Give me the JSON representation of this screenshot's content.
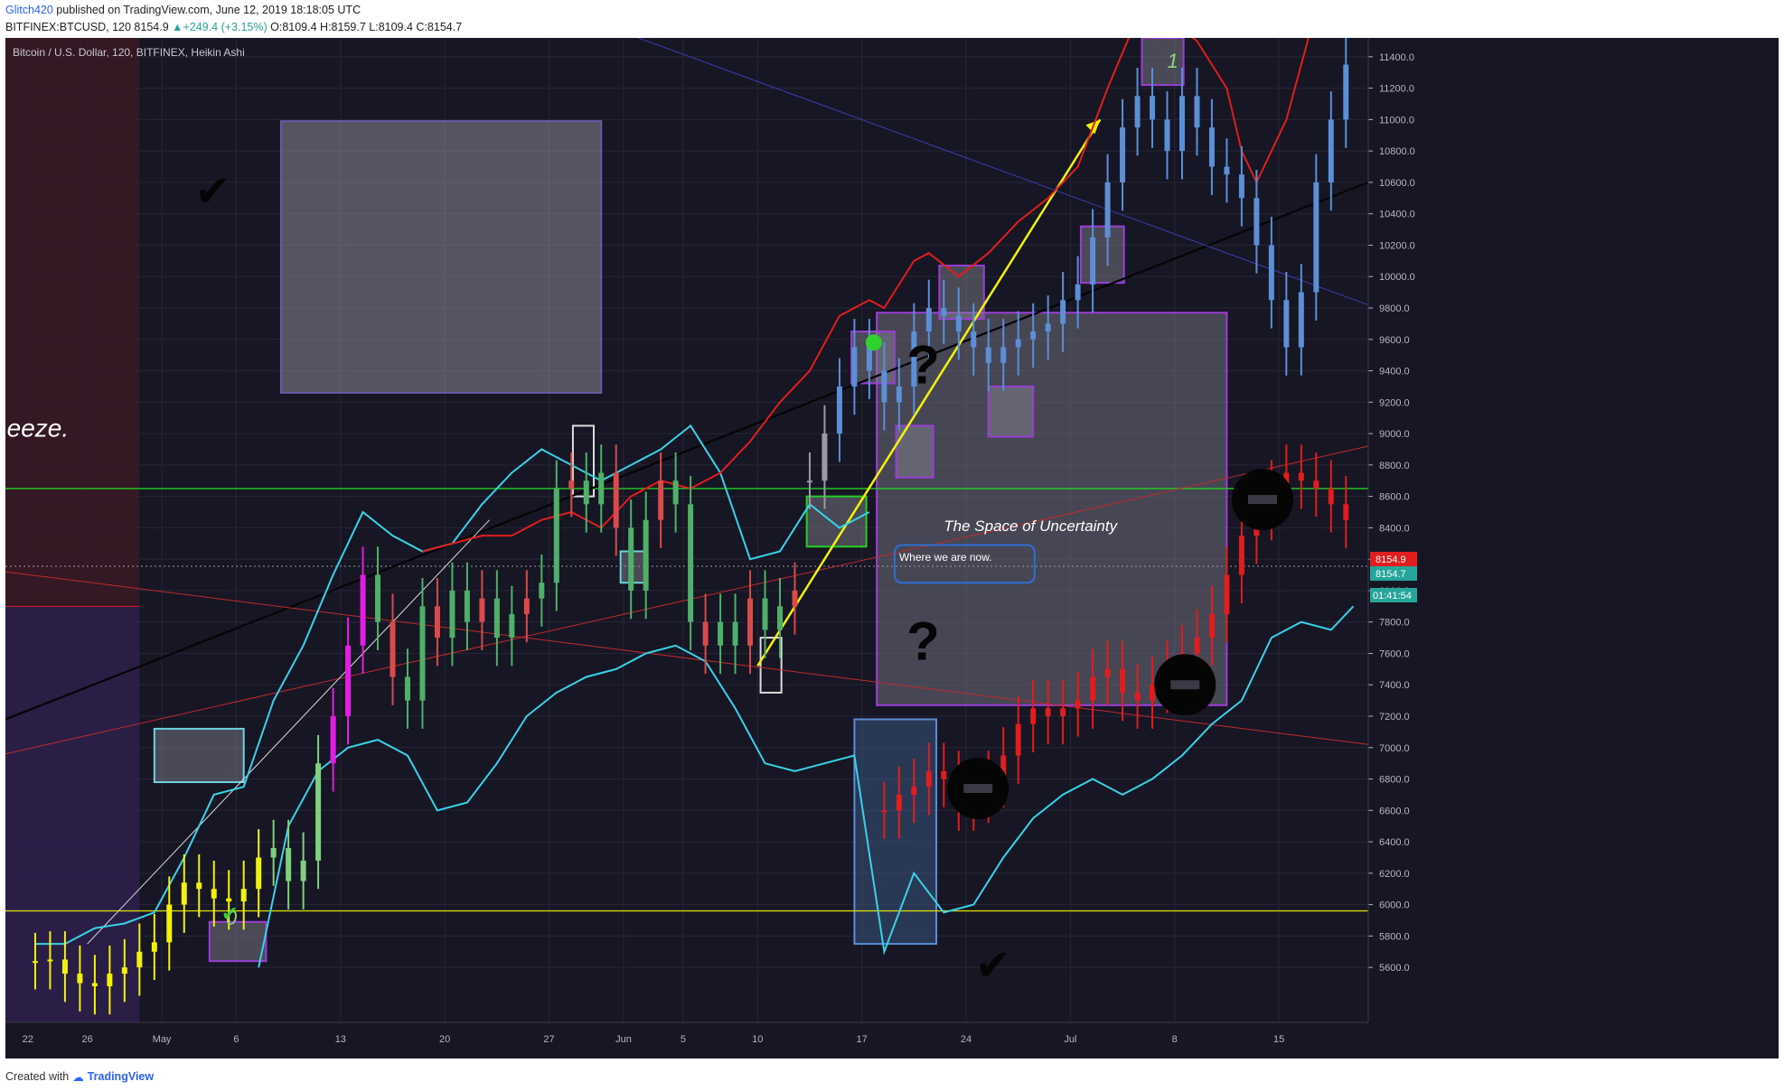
{
  "header": {
    "author": "Glitch420",
    "published_text": "published on TradingView.com, June 12, 2019 18:18:05 UTC",
    "symbol_line": "BITFINEX:BTCUSD, 120",
    "last": "8154.9",
    "change": "+249.4 (+3.15%)",
    "o_label": "O:",
    "o": "8109.4",
    "h_label": "H:",
    "h": "8159.7",
    "l_label": "L:",
    "l": "8109.4",
    "c_label": "C:",
    "c": "8154.7"
  },
  "footer": {
    "created_with": "Created with",
    "brand": "TradingView"
  },
  "colors": {
    "background": "#161624",
    "grid": "#262638",
    "cyan": "#39d3e8",
    "red": "#e21d1d",
    "blue_candle": "#5b8fd6",
    "yellow": "#f2f20a",
    "magenta": "#e41de4",
    "green_line": "#22d022",
    "purple": "#8a39c9",
    "black_line": "#050505",
    "axis_text": "#b7b7c2"
  },
  "chart_data": {
    "type": "candlestick",
    "title": "Bitcoin / U.S. Dollar, 120, BITFINEX, Heikin Ashi",
    "ylim": [
      5250,
      11520
    ],
    "y_ticks": [
      5600,
      5800,
      6000,
      6200,
      6400,
      6600,
      6800,
      7000,
      7200,
      7400,
      7600,
      7800,
      8000,
      8200,
      8400,
      8600,
      8800,
      9000,
      9200,
      9400,
      9600,
      9800,
      10000,
      10200,
      10400,
      10600,
      10800,
      11000,
      11200,
      11400
    ],
    "x_ticks": [
      {
        "label": "22",
        "day": -9
      },
      {
        "label": "26",
        "day": -5
      },
      {
        "label": "May",
        "day": 0
      },
      {
        "label": "6",
        "day": 5
      },
      {
        "label": "13",
        "day": 12
      },
      {
        "label": "20",
        "day": 19
      },
      {
        "label": "27",
        "day": 26
      },
      {
        "label": "Jun",
        "day": 31
      },
      {
        "label": "5",
        "day": 35
      },
      {
        "label": "10",
        "day": 40
      },
      {
        "label": "17",
        "day": 47
      },
      {
        "label": "24",
        "day": 54
      },
      {
        "label": "Jul",
        "day": 61
      },
      {
        "label": "8",
        "day": 68
      },
      {
        "label": "15",
        "day": 75
      }
    ],
    "xlim_days": [
      -10.5,
      81
    ],
    "price_labels": [
      {
        "value": 8154.9,
        "text": "8154.9",
        "color": "#e21d1d"
      },
      {
        "value": 8154.7,
        "text": "8154.7",
        "color": "#26a69a"
      }
    ],
    "countdown": "01:41:54",
    "horizontal_lines": [
      {
        "price": 8650,
        "color": "#22d022",
        "style": "solid"
      },
      {
        "price": 5960,
        "color": "#d6d60a",
        "style": "solid"
      },
      {
        "price": 8154.9,
        "color": "#9a9aaa",
        "style": "dotted"
      }
    ],
    "series": [
      {
        "name": "",
        "style": "heikin-ashi candles",
        "points": [
          [
            -8.5,
            5640
          ],
          [
            -7.5,
            5650
          ],
          [
            -6.5,
            5560
          ],
          [
            -5.5,
            5500
          ],
          [
            -4.5,
            5480
          ],
          [
            -3.5,
            5560
          ],
          [
            -2.5,
            5600
          ],
          [
            -1.5,
            5700
          ],
          [
            -0.5,
            5760
          ],
          [
            0.5,
            6000
          ],
          [
            1.5,
            6140
          ],
          [
            2.5,
            6100
          ],
          [
            3.5,
            6040
          ],
          [
            4.5,
            6020
          ],
          [
            5.5,
            6100
          ],
          [
            6.5,
            6300
          ],
          [
            7.5,
            6360
          ],
          [
            8.5,
            6150
          ],
          [
            9.5,
            6280
          ],
          [
            10.5,
            6900
          ],
          [
            11.5,
            7200
          ],
          [
            12.5,
            7650
          ],
          [
            13.5,
            8100
          ],
          [
            14.5,
            7800
          ],
          [
            15.5,
            7450
          ],
          [
            16.5,
            7300
          ],
          [
            17.5,
            7900
          ],
          [
            18.5,
            7700
          ],
          [
            19.5,
            8000
          ],
          [
            20.5,
            7800
          ],
          [
            21.5,
            7950
          ],
          [
            22.5,
            7700
          ],
          [
            23.5,
            7850
          ],
          [
            24.5,
            7950
          ],
          [
            25.5,
            8050
          ],
          [
            26.5,
            8650
          ],
          [
            27.5,
            8700
          ],
          [
            28.5,
            8550
          ],
          [
            29.5,
            8750
          ],
          [
            30.5,
            8400
          ],
          [
            31.5,
            8000
          ],
          [
            32.5,
            8450
          ],
          [
            33.5,
            8700
          ],
          [
            34.5,
            8550
          ],
          [
            35.5,
            7800
          ],
          [
            36.5,
            7650
          ],
          [
            37.5,
            7800
          ],
          [
            38.5,
            7650
          ],
          [
            39.5,
            7950
          ],
          [
            40.5,
            7750
          ],
          [
            41.5,
            7900
          ],
          [
            42.5,
            8000
          ]
        ]
      },
      {
        "name": "",
        "style": "projected candles",
        "points": [
          [
            43.5,
            8700
          ],
          [
            44.5,
            9000
          ],
          [
            45.5,
            9300
          ],
          [
            46.5,
            9550
          ],
          [
            47.5,
            9400
          ],
          [
            48.5,
            9200
          ],
          [
            49.5,
            9300
          ],
          [
            50.5,
            9650
          ],
          [
            51.5,
            9800
          ],
          [
            52.5,
            9750
          ],
          [
            53.5,
            9650
          ],
          [
            54.5,
            9550
          ],
          [
            55.5,
            9450
          ],
          [
            56.5,
            9550
          ],
          [
            57.5,
            9600
          ],
          [
            58.5,
            9650
          ],
          [
            59.5,
            9700
          ],
          [
            60.5,
            9850
          ],
          [
            61.5,
            9950
          ],
          [
            62.5,
            10250
          ],
          [
            63.5,
            10600
          ],
          [
            64.5,
            10950
          ],
          [
            65.5,
            11150
          ],
          [
            66.5,
            11000
          ],
          [
            67.5,
            10800
          ],
          [
            68.5,
            11150
          ],
          [
            69.5,
            10950
          ],
          [
            70.5,
            10700
          ],
          [
            71.5,
            10650
          ],
          [
            72.5,
            10500
          ],
          [
            73.5,
            10200
          ],
          [
            74.5,
            9850
          ],
          [
            75.5,
            9550
          ],
          [
            76.5,
            9900
          ],
          [
            77.5,
            10600
          ],
          [
            78.5,
            11000
          ],
          [
            79.5,
            11350
          ]
        ]
      },
      {
        "name": "",
        "style": "projected red bars",
        "points": [
          [
            48.5,
            6600
          ],
          [
            49.5,
            6700
          ],
          [
            50.5,
            6750
          ],
          [
            51.5,
            6850
          ],
          [
            52.5,
            6800
          ],
          [
            53.5,
            6650
          ],
          [
            54.5,
            6700
          ],
          [
            55.5,
            6800
          ],
          [
            56.5,
            6950
          ],
          [
            57.5,
            7150
          ],
          [
            58.5,
            7250
          ],
          [
            59.5,
            7200
          ],
          [
            60.5,
            7250
          ],
          [
            61.5,
            7300
          ],
          [
            62.5,
            7450
          ],
          [
            63.5,
            7500
          ],
          [
            64.5,
            7350
          ],
          [
            65.5,
            7300
          ],
          [
            66.5,
            7400
          ],
          [
            67.5,
            7500
          ],
          [
            68.5,
            7600
          ],
          [
            69.5,
            7700
          ],
          [
            70.5,
            7850
          ],
          [
            71.5,
            8100
          ],
          [
            72.5,
            8350
          ],
          [
            73.5,
            8500
          ],
          [
            74.5,
            8650
          ],
          [
            75.5,
            8750
          ],
          [
            76.5,
            8700
          ],
          [
            77.5,
            8650
          ],
          [
            78.5,
            8550
          ],
          [
            79.5,
            8450
          ]
        ]
      },
      {
        "name": "",
        "style": "cyan upper band",
        "points": [
          [
            -8.5,
            5750
          ],
          [
            -6.5,
            5750
          ],
          [
            -4.5,
            5850
          ],
          [
            -2.5,
            5880
          ],
          [
            -0.5,
            5950
          ],
          [
            1.5,
            6300
          ],
          [
            3.5,
            6700
          ],
          [
            5.5,
            6750
          ],
          [
            7.5,
            7300
          ],
          [
            9.5,
            7650
          ],
          [
            11.5,
            8100
          ],
          [
            13.5,
            8500
          ],
          [
            15.5,
            8350
          ],
          [
            17.5,
            8250
          ],
          [
            19.5,
            8300
          ],
          [
            21.5,
            8550
          ],
          [
            23.5,
            8750
          ],
          [
            25.5,
            8900
          ],
          [
            27.5,
            8800
          ],
          [
            29.5,
            8700
          ],
          [
            31.5,
            8800
          ],
          [
            33.5,
            8900
          ],
          [
            35.5,
            9050
          ],
          [
            37.5,
            8750
          ],
          [
            39.5,
            8200
          ],
          [
            41.5,
            8250
          ],
          [
            43.5,
            8550
          ],
          [
            45.5,
            8400
          ],
          [
            47.5,
            8500
          ]
        ]
      },
      {
        "name": "",
        "style": "cyan lower band",
        "points": [
          [
            6.5,
            5600
          ],
          [
            8.5,
            6500
          ],
          [
            10.5,
            6850
          ],
          [
            12.5,
            7000
          ],
          [
            14.5,
            7050
          ],
          [
            16.5,
            6950
          ],
          [
            18.5,
            6600
          ],
          [
            20.5,
            6650
          ],
          [
            22.5,
            6900
          ],
          [
            24.5,
            7200
          ],
          [
            26.5,
            7350
          ],
          [
            28.5,
            7450
          ],
          [
            30.5,
            7500
          ],
          [
            32.5,
            7600
          ],
          [
            34.5,
            7650
          ],
          [
            36.5,
            7550
          ],
          [
            38.5,
            7250
          ],
          [
            40.5,
            6900
          ],
          [
            42.5,
            6850
          ],
          [
            44.5,
            6900
          ],
          [
            46.5,
            6950
          ],
          [
            48.5,
            5700
          ],
          [
            50.5,
            6200
          ],
          [
            52.5,
            5950
          ],
          [
            54.5,
            6000
          ],
          [
            56.5,
            6300
          ],
          [
            58.5,
            6550
          ],
          [
            60.5,
            6700
          ],
          [
            62.5,
            6800
          ],
          [
            64.5,
            6700
          ],
          [
            66.5,
            6800
          ],
          [
            68.5,
            6950
          ],
          [
            70.5,
            7150
          ],
          [
            72.5,
            7300
          ],
          [
            74.5,
            7700
          ],
          [
            76.5,
            7800
          ],
          [
            78.5,
            7750
          ],
          [
            80,
            7900
          ]
        ]
      },
      {
        "name": "",
        "style": "red band",
        "points": [
          [
            17.5,
            8250
          ],
          [
            19.5,
            8300
          ],
          [
            21.5,
            8350
          ],
          [
            23.5,
            8350
          ],
          [
            25.5,
            8450
          ],
          [
            27.5,
            8500
          ],
          [
            29.5,
            8400
          ],
          [
            31.5,
            8600
          ],
          [
            33.5,
            8700
          ],
          [
            35.5,
            8650
          ],
          [
            37.5,
            8750
          ],
          [
            39.5,
            8950
          ],
          [
            41.5,
            9200
          ],
          [
            43.5,
            9400
          ],
          [
            45.5,
            9750
          ],
          [
            47.5,
            9850
          ],
          [
            48.5,
            9800
          ],
          [
            50.5,
            10100
          ],
          [
            51.5,
            10150
          ],
          [
            53.5,
            10000
          ],
          [
            55.5,
            10150
          ],
          [
            57.5,
            10350
          ],
          [
            59.5,
            10500
          ],
          [
            61.5,
            10700
          ],
          [
            63.5,
            11200
          ],
          [
            65.5,
            11650
          ],
          [
            67.5,
            11650
          ],
          [
            69.5,
            11500
          ],
          [
            71.5,
            11200
          ],
          [
            72.5,
            10800
          ],
          [
            73.5,
            10600
          ],
          [
            75.5,
            11000
          ],
          [
            77.5,
            11700
          ]
        ]
      }
    ],
    "trendlines": [
      {
        "points": [
          [
            -10.5,
            7180
          ],
          [
            81,
            10600
          ]
        ],
        "color": "#050505",
        "width": 2.2
      },
      {
        "points": [
          [
            -10.5,
            6960
          ],
          [
            81,
            8920
          ]
        ],
        "color": "#c12a2a",
        "width": 1
      },
      {
        "points": [
          [
            -10.5,
            8120
          ],
          [
            81,
            7020
          ]
        ],
        "color": "#c12a2a",
        "width": 1
      },
      {
        "points": [
          [
            32,
            11520
          ],
          [
            81,
            9820
          ]
        ],
        "color": "#3b3bb3",
        "width": 1
      },
      {
        "points": [
          [
            -5,
            5750
          ],
          [
            22,
            8450
          ]
        ],
        "color": "#dcdcdc",
        "width": 1
      },
      {
        "points": [
          [
            40,
            7520
          ],
          [
            63,
            11000
          ]
        ],
        "color": "#f2f20a",
        "width": 2.5
      }
    ],
    "annotations": [
      {
        "text": "eeze.",
        "day": -10.4,
        "price": 8980,
        "size": 28,
        "italic": true,
        "color": "#ffffff"
      },
      {
        "text": "The Space of Uncertainty",
        "day": 52.5,
        "price": 8380,
        "size": 17,
        "italic": true,
        "color": "#ffffff"
      },
      {
        "text": "Where we are now.",
        "day": 49.5,
        "price": 8190,
        "size": 12,
        "italic": false,
        "color": "#ffffff"
      },
      {
        "text": "0",
        "day": 4.3,
        "price": 5870,
        "size": 22,
        "italic": true,
        "color": "#8fd67a"
      },
      {
        "text": "1",
        "day": 67.5,
        "price": 11330,
        "size": 22,
        "italic": true,
        "color": "#8fd67a"
      },
      {
        "text": "?",
        "day": 50,
        "price": 9320,
        "size": 60,
        "italic": false,
        "color": "#050505"
      },
      {
        "text": "?",
        "day": 50,
        "price": 7560,
        "size": 60,
        "italic": false,
        "color": "#050505"
      }
    ],
    "boxes": [
      {
        "d1": 8,
        "d2": 29.5,
        "p1": 10990,
        "p2": 9260,
        "fill": "#8a8a96",
        "stroke": "#6a5aa8"
      },
      {
        "d1": 48,
        "d2": 71.5,
        "p1": 9770,
        "p2": 7270,
        "fill": "#6f6f7c",
        "stroke": "#9b3dd6"
      },
      {
        "d1": 46.5,
        "d2": 52,
        "p1": 7180,
        "p2": 5750,
        "fill": "#3a567e",
        "stroke": "#5a8ed6"
      }
    ]
  }
}
